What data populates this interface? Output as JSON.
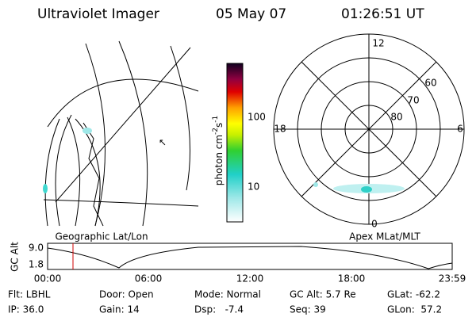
{
  "header": {
    "title": "Ultraviolet Imager",
    "date": "05 May 07",
    "time": "01:26:51 UT"
  },
  "colorbar": {
    "label": "photon cm",
    "exp1": "-2",
    "unit2": "s",
    "exp2": "-1",
    "ticks": [
      "100",
      "10"
    ]
  },
  "left_panel": {
    "label": "Geographic Lat/Lon"
  },
  "polar": {
    "label": "Apex MLat/MLT",
    "mlt": [
      "12",
      "18",
      "6",
      "0"
    ],
    "mlat": [
      "60",
      "70",
      "80"
    ]
  },
  "orbit": {
    "ylabel": "GC Alt",
    "yticks": [
      "9.0",
      "1.8"
    ],
    "xticks": [
      "00:00",
      "06:00",
      "12:00",
      "18:00",
      "23:59"
    ]
  },
  "info": [
    [
      "Flt: LBHL",
      "Door: Open",
      "Mode: Normal",
      "GC Alt: 5.7 Re",
      "GLat: -62.2"
    ],
    [
      "IP: 36.0",
      "Gain: 14",
      "Dsp:   -7.4",
      "Seq: 39",
      "GLon:  57.2"
    ]
  ]
}
